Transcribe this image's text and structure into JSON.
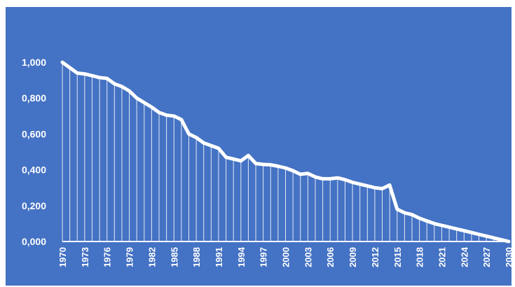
{
  "chart_data": {
    "type": "area",
    "title": "",
    "xlabel": "",
    "ylabel": "",
    "x": [
      1970,
      1971,
      1972,
      1973,
      1974,
      1975,
      1976,
      1977,
      1978,
      1979,
      1980,
      1981,
      1982,
      1983,
      1984,
      1985,
      1986,
      1987,
      1988,
      1989,
      1990,
      1991,
      1992,
      1993,
      1994,
      1995,
      1996,
      1997,
      1998,
      1999,
      2000,
      2001,
      2002,
      2003,
      2004,
      2005,
      2006,
      2007,
      2008,
      2009,
      2010,
      2011,
      2012,
      2013,
      2014,
      2015,
      2016,
      2017,
      2018,
      2019,
      2020,
      2021,
      2022,
      2023,
      2024,
      2025,
      2026,
      2027,
      2028,
      2029,
      2030
    ],
    "x_tick_labels": [
      "1970",
      "1973",
      "1976",
      "1979",
      "1982",
      "1985",
      "1988",
      "1991",
      "1994",
      "1997",
      "2000",
      "2003",
      "2006",
      "2009",
      "2012",
      "2015",
      "2018",
      "2021",
      "2024",
      "2027",
      "2030"
    ],
    "y_tick_labels": [
      "0,000",
      "0,200",
      "0,400",
      "0,600",
      "0,800",
      "1,000"
    ],
    "y_tick_values": [
      0,
      0.2,
      0.4,
      0.6,
      0.8,
      1.0
    ],
    "ylim": [
      0,
      1.0
    ],
    "grid": false,
    "series": [
      {
        "values": [
          1.0,
          0.97,
          0.94,
          0.935,
          0.925,
          0.915,
          0.91,
          0.88,
          0.865,
          0.84,
          0.8,
          0.775,
          0.75,
          0.72,
          0.705,
          0.7,
          0.68,
          0.6,
          0.58,
          0.55,
          0.535,
          0.52,
          0.47,
          0.46,
          0.45,
          0.48,
          0.435,
          0.43,
          0.428,
          0.42,
          0.41,
          0.395,
          0.375,
          0.38,
          0.36,
          0.35,
          0.35,
          0.355,
          0.345,
          0.33,
          0.32,
          0.31,
          0.3,
          0.295,
          0.315,
          0.18,
          0.16,
          0.15,
          0.13,
          0.115,
          0.1,
          0.09,
          0.08,
          0.07,
          0.06,
          0.05,
          0.04,
          0.03,
          0.02,
          0.01,
          0.0
        ]
      }
    ],
    "colors": {
      "background": "#4472c4",
      "line": "#ffffff",
      "drop_lines": "#ffffff"
    }
  }
}
